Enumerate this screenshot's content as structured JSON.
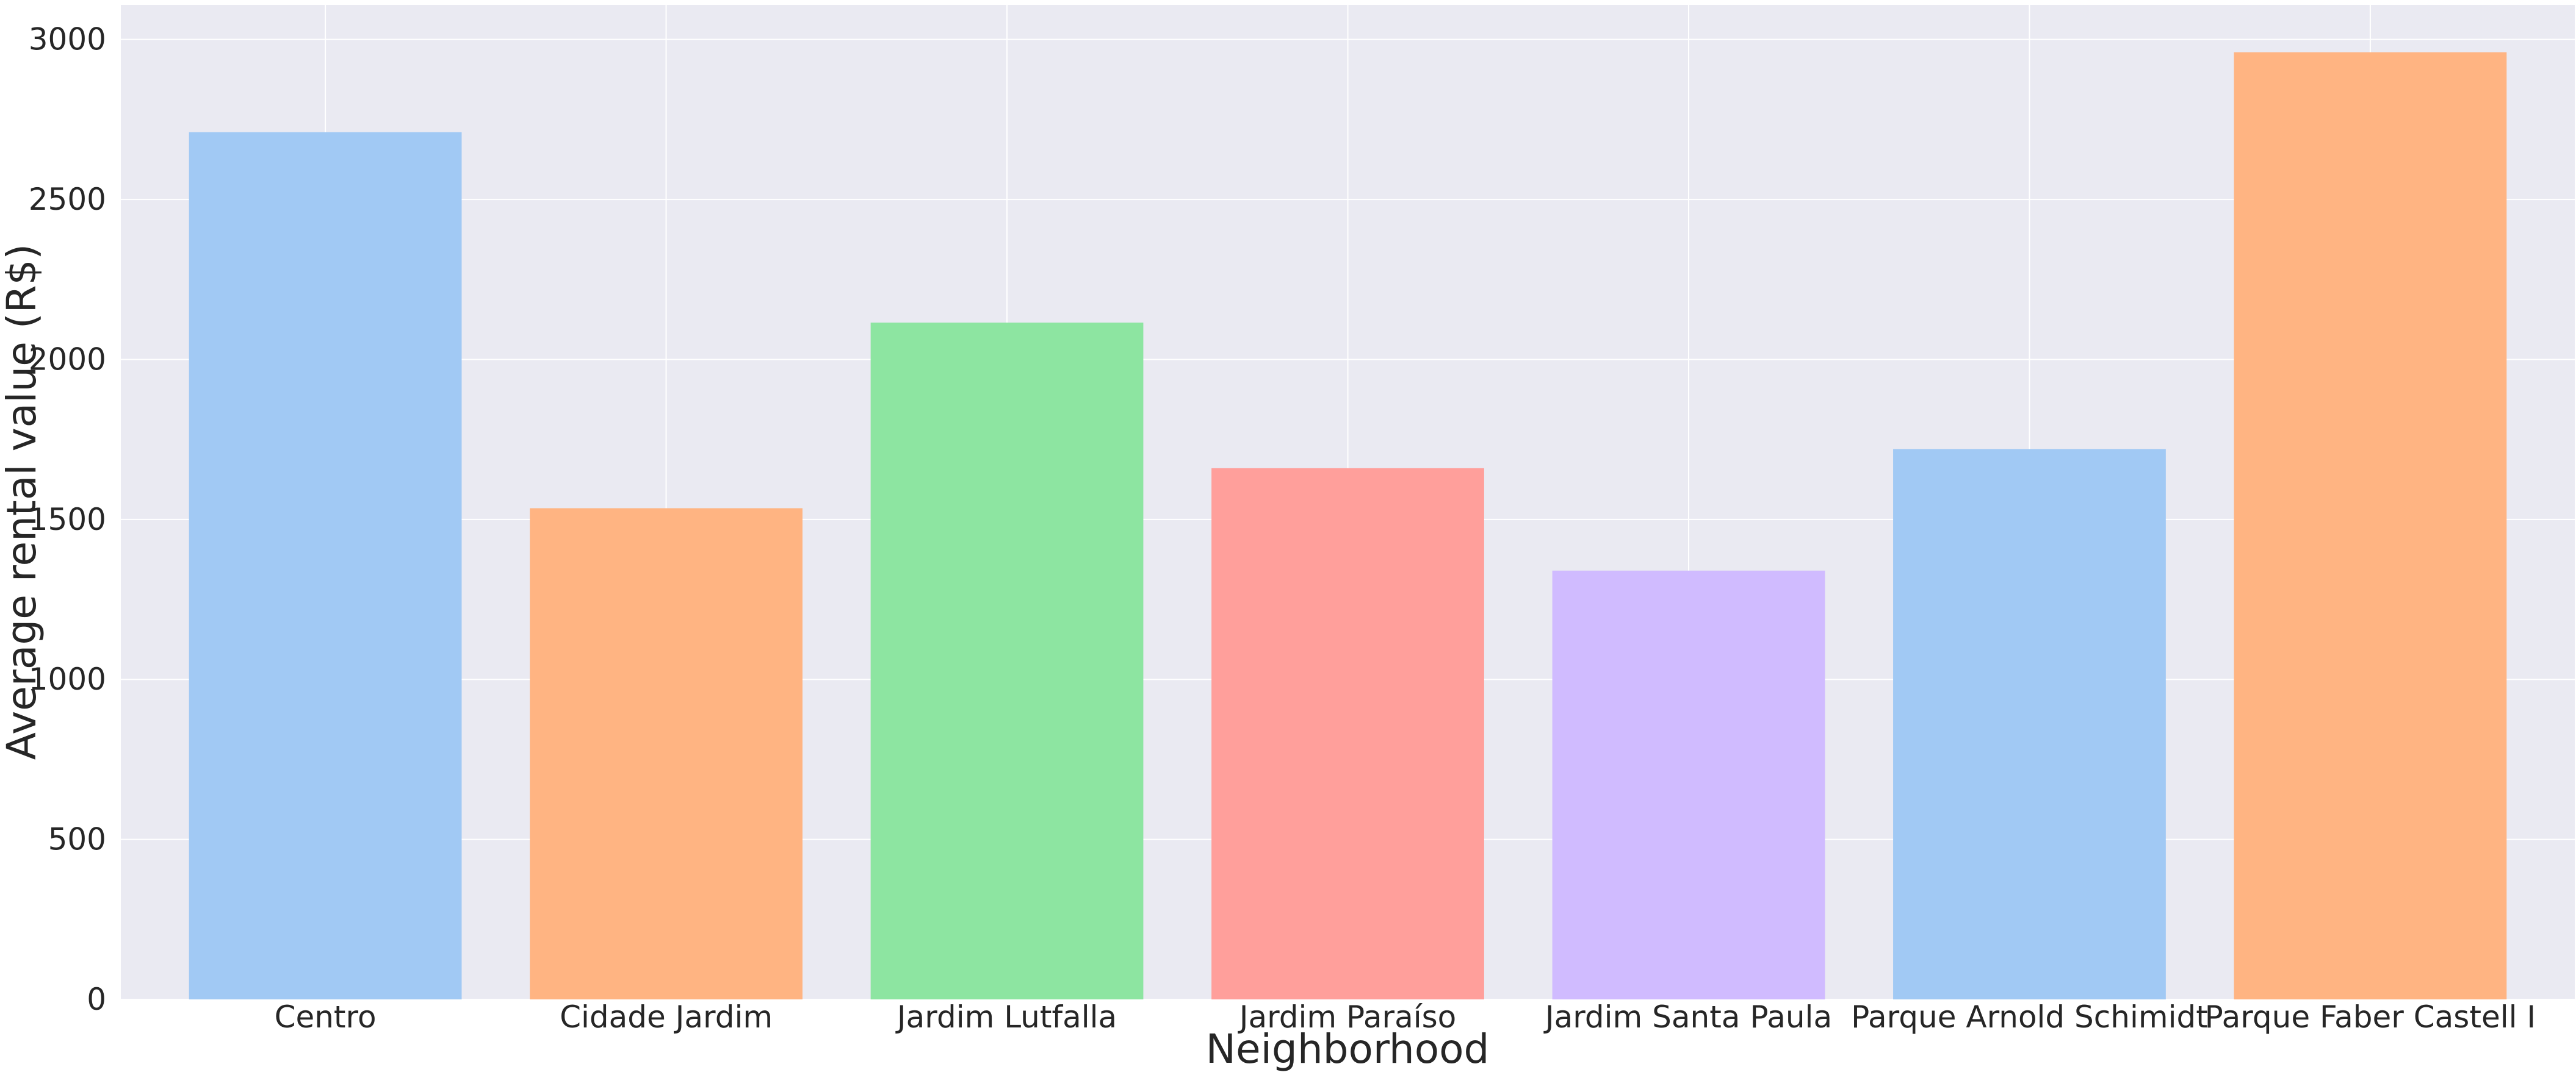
{
  "chart_data": {
    "type": "bar",
    "title": "",
    "xlabel": "Neighborhood",
    "ylabel": "Average rental value (R$)",
    "categories": [
      "Centro",
      "Cidade Jardim",
      "Jardim Lutfalla",
      "Jardim Paraíso",
      "Jardim Santa Paula",
      "Parque Arnold Schimidt",
      "Parque Faber Castell I"
    ],
    "values": [
      2710,
      1535,
      2115,
      1660,
      1340,
      1720,
      2960
    ],
    "colors": [
      "#a1c9f4",
      "#ffb482",
      "#8de5a1",
      "#ff9f9b",
      "#d0bbff",
      "#a1c9f4",
      "#ffb482"
    ],
    "ylim": [
      0,
      3108
    ],
    "yticks": [
      0,
      500,
      1000,
      1500,
      2000,
      2500,
      3000
    ],
    "ytick_labels": [
      "0",
      "500",
      "1000",
      "1500",
      "2000",
      "2500",
      "3000"
    ],
    "grid": true,
    "background_color": "#eaeaf2",
    "grid_color": "#ffffff"
  }
}
